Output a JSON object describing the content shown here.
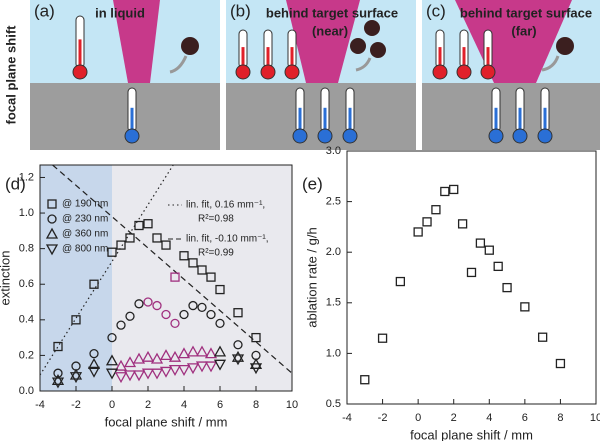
{
  "side_label": "focal plane shift",
  "panels": [
    {
      "label": "(a)",
      "title": "in liquid"
    },
    {
      "label": "(b)",
      "title": "behind target surface",
      "subtitle": "(near)"
    },
    {
      "label": "(c)",
      "title": "behind target surface",
      "subtitle": "(far)"
    }
  ],
  "chart_data": [
    {
      "type": "scatter",
      "label": "(d)",
      "x_label": "focal plane shift / mm",
      "y_label": "extinction",
      "xlim": [
        -4,
        10
      ],
      "xticks": [
        -4,
        -2,
        0,
        2,
        4,
        6,
        8,
        10
      ],
      "ylim": [
        0,
        1.27
      ],
      "yticks": [
        {
          "value": 0,
          "label": "0.0"
        },
        0.2,
        0.4,
        0.6,
        0.8,
        {
          "value": 1,
          "label": "1.0"
        },
        1.2
      ],
      "regions": [
        {
          "x": [
            -4,
            0
          ],
          "color": "#c7d7eb"
        },
        {
          "x": [
            0,
            10
          ],
          "color": "#e9e9ee"
        }
      ],
      "x": [
        -3,
        -2,
        -1,
        0,
        0.5,
        1,
        1.5,
        2,
        2.5,
        3,
        3.5,
        4,
        4.5,
        5,
        5.5,
        6,
        7,
        8
      ],
      "series": [
        {
          "name": "@ 190 nm",
          "marker": "square",
          "color": "#222",
          "values": [
            0.25,
            0.4,
            0.6,
            0.78,
            0.82,
            0.86,
            0.93,
            0.94,
            0.86,
            0.82,
            0.64,
            0.76,
            0.72,
            0.68,
            0.64,
            0.57,
            0.44,
            0.3
          ],
          "point_colors": [
            "#222",
            "#222",
            "#222",
            "#222",
            "#222",
            "#222",
            "#222",
            "#222",
            "#222",
            "#222",
            "#a0307f",
            "#222",
            "#222",
            "#222",
            "#222",
            "#222",
            "#222",
            "#222"
          ]
        },
        {
          "name": "@ 230 nm",
          "marker": "circle",
          "color": "#222",
          "values": [
            0.1,
            0.14,
            0.21,
            0.3,
            0.37,
            0.42,
            0.49,
            0.5,
            0.48,
            0.43,
            0.38,
            0.43,
            0.48,
            0.47,
            0.43,
            0.38,
            0.26,
            0.2
          ],
          "point_colors": [
            "#222",
            "#222",
            "#222",
            "#222",
            "#222",
            "#222",
            "#222",
            "#a0307f",
            "#a0307f",
            "#a0307f",
            "#a0307f",
            "#222",
            "#222",
            "#222",
            "#222",
            "#222",
            "#222",
            "#222"
          ]
        },
        {
          "name": "@ 360 nm",
          "marker": "triangle-up",
          "color": "#222",
          "values": [
            0.06,
            0.09,
            0.15,
            0.17,
            0.14,
            0.16,
            0.18,
            0.19,
            0.18,
            0.2,
            0.19,
            0.21,
            0.22,
            0.22,
            0.21,
            0.22,
            0.19,
            0.15
          ],
          "point_colors": [
            "#222",
            "#222",
            "#222",
            "#222",
            "#a0307f",
            "#a0307f",
            "#a0307f",
            "#a0307f",
            "#a0307f",
            "#a0307f",
            "#a0307f",
            "#a0307f",
            "#a0307f",
            "#a0307f",
            "#a0307f",
            "#222",
            "#222",
            "#222"
          ]
        },
        {
          "name": "@ 800 nm",
          "marker": "triangle-down",
          "color": "#222",
          "values": [
            0.05,
            0.08,
            0.11,
            0.1,
            0.08,
            0.09,
            0.09,
            0.1,
            0.1,
            0.11,
            0.12,
            0.12,
            0.13,
            0.14,
            0.14,
            0.15,
            0.18,
            0.13
          ],
          "point_colors": [
            "#222",
            "#222",
            "#222",
            "#222",
            "#a0307f",
            "#a0307f",
            "#a0307f",
            "#a0307f",
            "#a0307f",
            "#a0307f",
            "#a0307f",
            "#a0307f",
            "#a0307f",
            "#a0307f",
            "#a0307f",
            "#222",
            "#222",
            "#222"
          ]
        }
      ],
      "fits": [
        {
          "name": [
            "lin. fit, 0.16 mm⁻¹,",
            "R²=0.98"
          ],
          "style": "dotted",
          "x": [
            -4,
            3.4
          ],
          "values": [
            0.09,
            1.27
          ]
        },
        {
          "name": [
            "lin. fit, -0.10 mm⁻¹,",
            "R²=0.99"
          ],
          "style": "dashed",
          "x": [
            -3.3,
            10
          ],
          "values": [
            1.27,
            0.1
          ]
        }
      ]
    },
    {
      "type": "scatter",
      "label": "(e)",
      "x_label": "focal plane shift / mm",
      "y_label": "ablation rate / g/h",
      "xlim": [
        -4,
        10
      ],
      "xticks": [
        -4,
        -2,
        0,
        2,
        4,
        6,
        8,
        10
      ],
      "ylim": [
        0.5,
        3
      ],
      "yticks": [
        0.5,
        {
          "value": 1,
          "label": "1.0"
        },
        1.5,
        {
          "value": 2,
          "label": "2.0"
        },
        2.5,
        {
          "value": 3,
          "label": "3.0"
        }
      ],
      "x": [
        -3,
        -2,
        -1,
        0,
        0.5,
        1,
        1.5,
        2,
        2.5,
        3,
        3.5,
        4,
        4.5,
        5,
        6,
        7,
        8
      ],
      "series": [
        {
          "name": null,
          "marker": "square",
          "color": "#222",
          "values": [
            0.74,
            1.15,
            1.71,
            2.2,
            2.3,
            2.42,
            2.6,
            2.62,
            2.28,
            1.8,
            2.09,
            2.02,
            1.86,
            1.65,
            1.46,
            1.16,
            0.9
          ]
        }
      ]
    }
  ]
}
